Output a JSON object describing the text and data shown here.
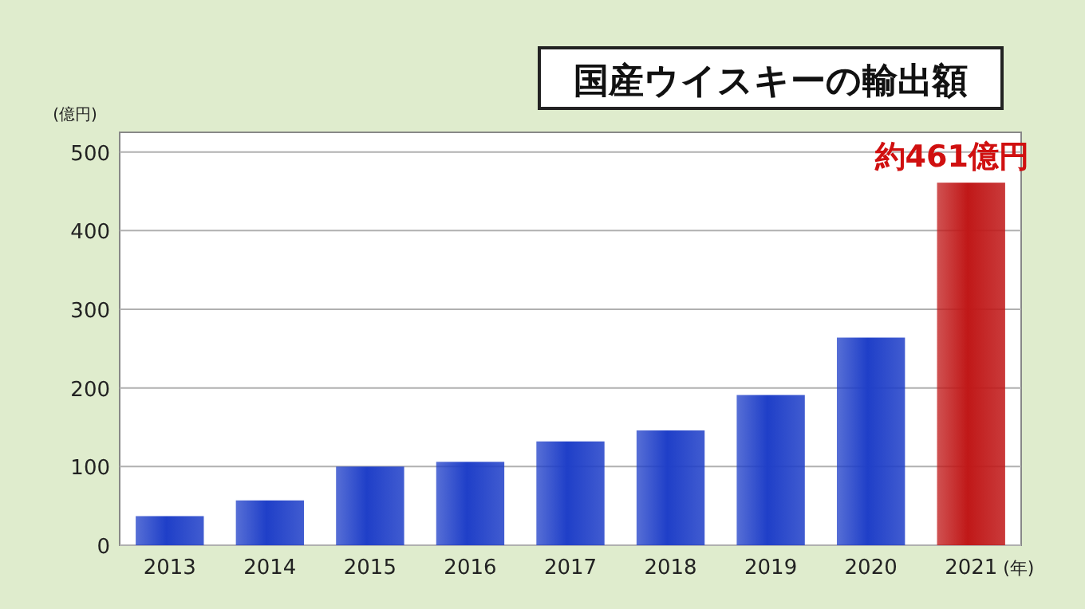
{
  "chart_data": {
    "type": "bar",
    "title": "国産ウイスキーの輸出額",
    "ylabel": "(億円)",
    "xlabel": "(年)",
    "categories": [
      "2013",
      "2014",
      "2015",
      "2016",
      "2017",
      "2018",
      "2019",
      "2020",
      "2021"
    ],
    "values": [
      37,
      57,
      100,
      106,
      132,
      146,
      191,
      264,
      461
    ],
    "colors": [
      "#1f3fc8",
      "#1f3fc8",
      "#1f3fc8",
      "#1f3fc8",
      "#1f3fc8",
      "#1f3fc8",
      "#1f3fc8",
      "#1f3fc8",
      "#c01818"
    ],
    "ylim": [
      0,
      525
    ],
    "yticks": [
      0,
      100,
      200,
      300,
      400,
      500
    ],
    "grid": "y",
    "annotations": [
      {
        "text": "約461億円",
        "x": "2021",
        "y": 461
      }
    ]
  }
}
